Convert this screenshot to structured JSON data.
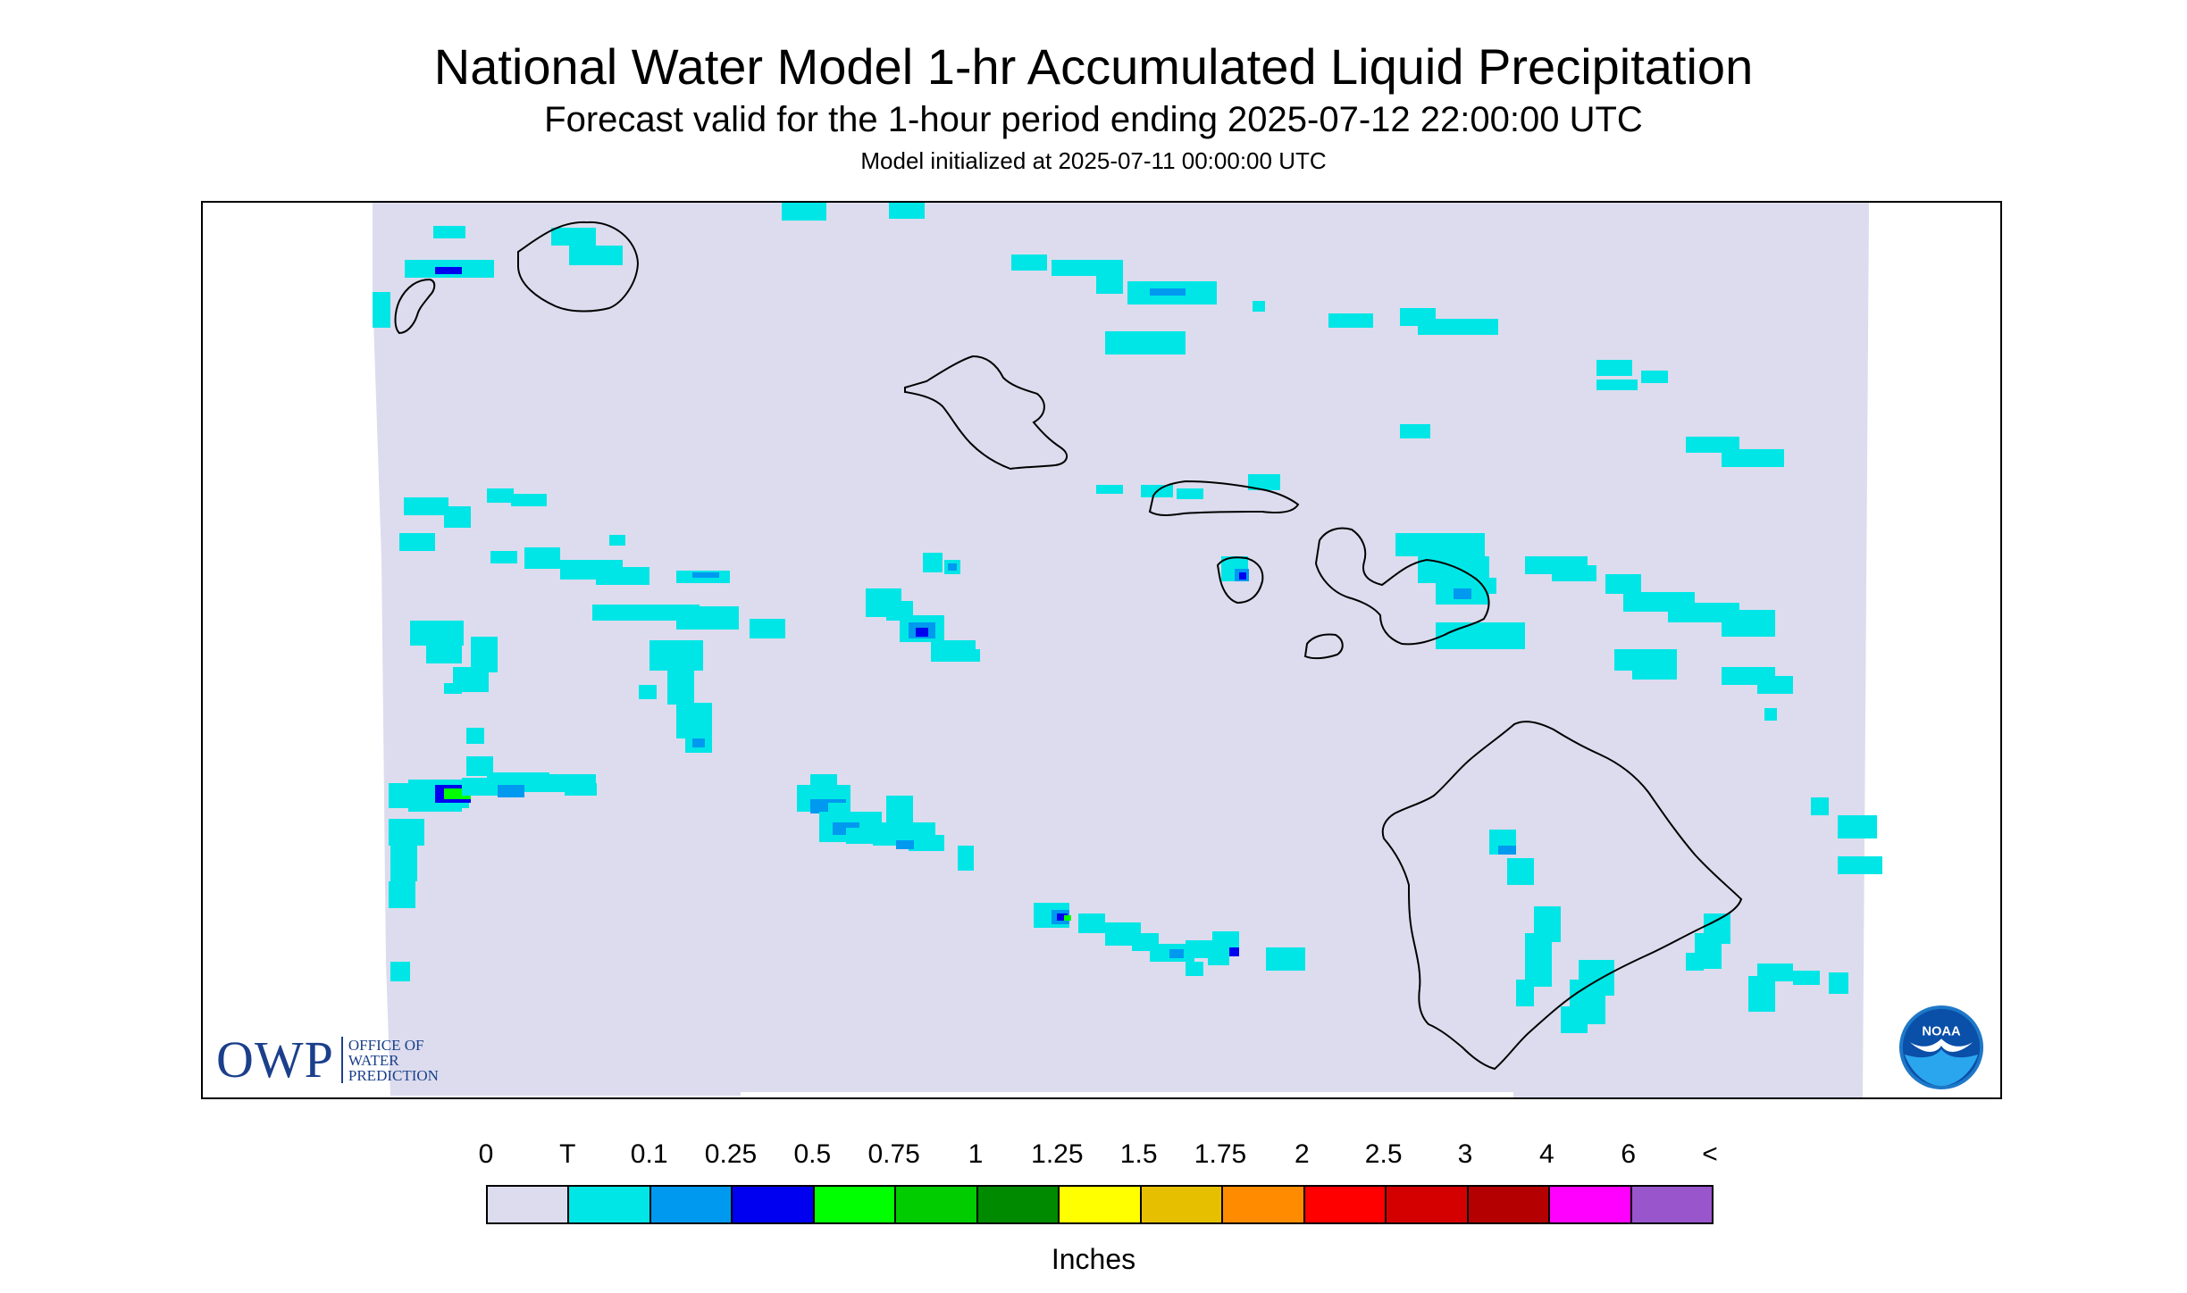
{
  "header": {
    "title": "National Water Model 1-hr Accumulated Liquid Precipitation",
    "subtitle": "Forecast valid for the 1-hour period ending 2025-07-12 22:00:00 UTC",
    "init_line": "Model initialized at 2025-07-11 00:00:00 UTC"
  },
  "map": {
    "background_no_data": "#ffffff",
    "background_zero": "#dcdcee",
    "outline_color": "#000000",
    "islands": [
      "Kauai",
      "Niihau",
      "Oahu",
      "Molokai",
      "Lanai",
      "Maui",
      "Kahoolawe",
      "Hawaii"
    ]
  },
  "logos": {
    "owp_letters": "OWP",
    "owp_line1": "OFFICE OF",
    "owp_line2": "WATER",
    "owp_line3": "PREDICTION",
    "noaa_text": "NOAA",
    "noaa_icon": "noaa-seagull-icon"
  },
  "legend": {
    "tick_labels": [
      "0",
      "T",
      "0.1",
      "0.25",
      "0.5",
      "0.75",
      "1",
      "1.25",
      "1.5",
      "1.75",
      "2",
      "2.5",
      "3",
      "4",
      "6",
      "<"
    ],
    "colors": [
      "#dcdcee",
      "#00e6e6",
      "#0099f0",
      "#0000f0",
      "#00ff00",
      "#00cc00",
      "#008a00",
      "#ffff00",
      "#e6c000",
      "#ff8c00",
      "#ff0000",
      "#d40000",
      "#b40000",
      "#ff00ff",
      "#9955cc"
    ],
    "units": "Inches"
  }
}
